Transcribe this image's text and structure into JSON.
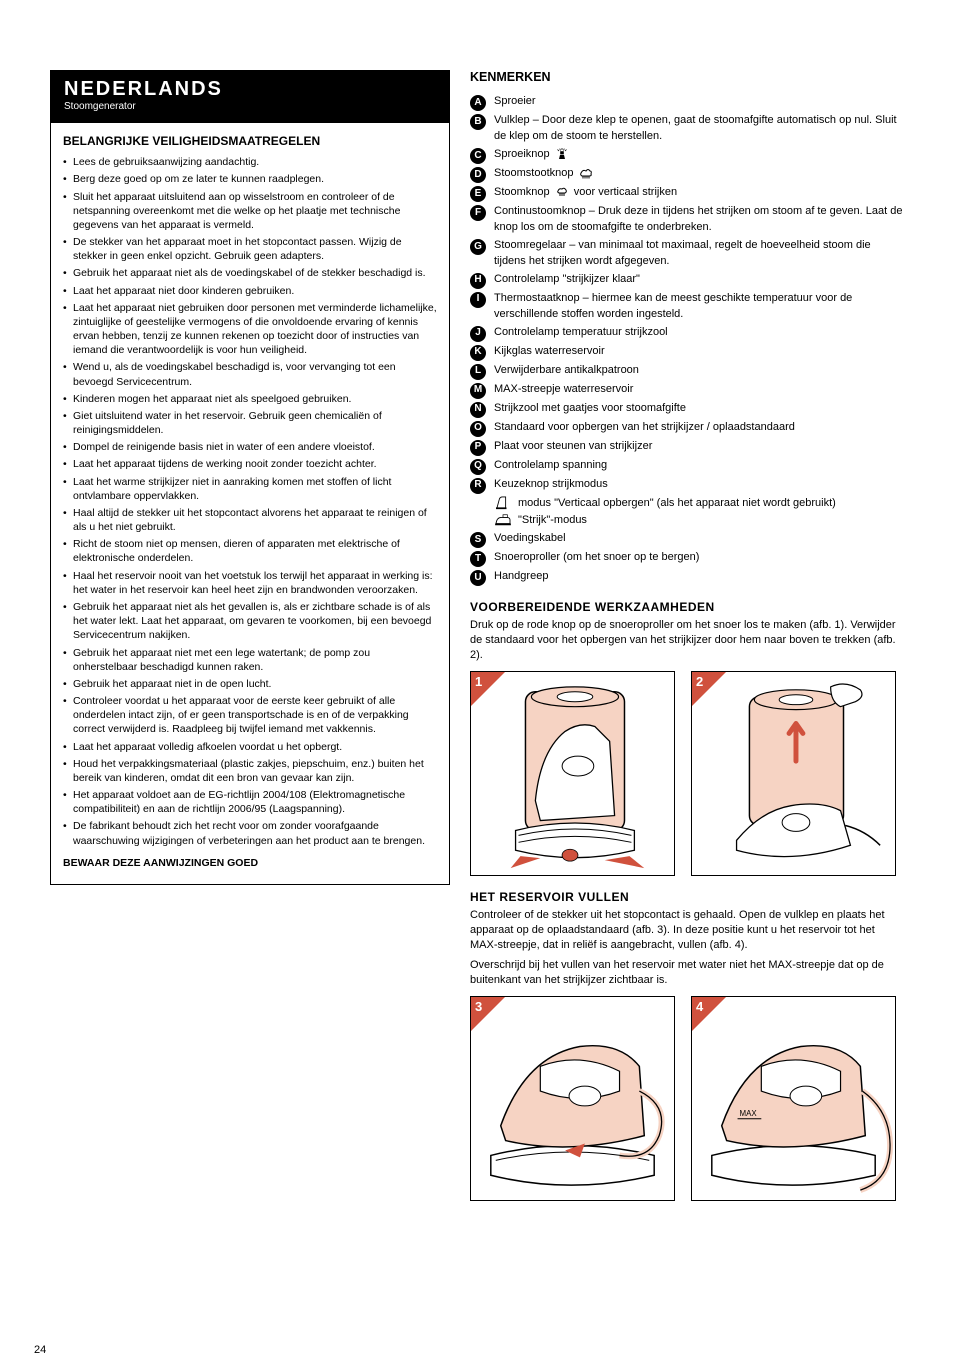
{
  "colors": {
    "accent": "#d0513d",
    "peach_fill": "#f6d3c3",
    "black": "#000000",
    "white": "#ffffff"
  },
  "page_number": "24",
  "header": {
    "title": "NEDERLANDS",
    "subtitle": "Stoomgenerator"
  },
  "safety": {
    "heading": "BELANGRIJKE VEILIGHEIDSMAATREGELEN",
    "items": [
      "Lees de gebruiksaanwijzing aandachtig.",
      "Berg deze goed op om ze later te kunnen raadplegen.",
      "Sluit het apparaat uitsluitend aan op wisselstroom en controleer of de netspanning overeenkomt met die welke op het plaatje met technische gegevens van het apparaat is vermeld.",
      "De stekker van het apparaat moet in het stopcontact passen. Wijzig de stekker in geen enkel opzicht. Gebruik geen adapters.",
      "Gebruik het apparaat niet als de voedingskabel of de stekker beschadigd is.",
      "Laat het apparaat niet door kinderen gebruiken.",
      "Laat het apparaat niet gebruiken door personen met verminderde lichamelijke, zintuiglijke of geestelijke vermogens of die onvoldoende ervaring of kennis ervan hebben, tenzij ze kunnen rekenen op toezicht door of instructies van iemand die verantwoordelijk is voor hun veiligheid.",
      "Wend u, als de voedingskabel beschadigd is, voor vervanging tot een bevoegd Servicecentrum.",
      "Kinderen mogen het apparaat niet als speelgoed gebruiken.",
      "Giet uitsluitend water in het reservoir. Gebruik geen chemicaliën of reinigingsmiddelen.",
      "Dompel de reinigende basis niet in water of een andere vloeistof.",
      "Laat het apparaat tijdens de werking nooit zonder toezicht achter.",
      "Laat het warme strijkijzer niet in aanraking komen met stoffen of licht ontvlambare oppervlakken.",
      "Haal altijd de stekker uit het stopcontact alvorens het apparaat te reinigen of als u het niet gebruikt.",
      "Richt de stoom niet op mensen, dieren of apparaten met elektrische of elektronische onderdelen.",
      "Haal het reservoir nooit van het voetstuk los terwijl het apparaat in werking is: het water in het reservoir kan heel heet zijn en brandwonden veroorzaken.",
      "Gebruik het apparaat niet als het gevallen is, als er zichtbare schade is of als het water lekt. Laat het apparaat, om gevaren te voorkomen, bij een bevoegd Servicecentrum nakijken.",
      "Gebruik het apparaat niet met een lege watertank; de pomp zou onherstelbaar beschadigd kunnen raken.",
      "Gebruik het apparaat niet in de open lucht.",
      "Controleer voordat u het apparaat voor de eerste keer gebruikt of alle onderdelen intact zijn, of er geen transportschade is en of de verpakking correct verwijderd is. Raadpleeg bij twijfel iemand met vakkennis.",
      "Laat het apparaat volledig afkoelen voordat u het opbergt.",
      "Houd het verpakkingsmateriaal (plastic zakjes, piepschuim, enz.) buiten het bereik van kinderen, omdat dit een bron van gevaar kan zijn.",
      "Het apparaat voldoet aan de EG-richtlijn 2004/108 (Elektromagnetische compatibiliteit) en aan de richtlijn 2006/95 (Laagspanning).",
      "De fabrikant behoudt zich het recht voor om zonder voorafgaande waarschuwing wijzigingen of verbeteringen aan het product aan te brengen."
    ],
    "footer": "BEWAAR DEZE AANWIJZINGEN GOED"
  },
  "features": {
    "heading": "KENMERKEN",
    "items": [
      {
        "key": "A",
        "text": "Sproeier"
      },
      {
        "key": "B",
        "text": "Vulklep – Door deze klep te openen, gaat de stoomafgifte automatisch op nul. Sluit de klep om de stoom te herstellen."
      },
      {
        "key": "C",
        "text": "Sproeiknop"
      },
      {
        "key": "D",
        "text": "Stoomstootknop"
      },
      {
        "key": "E",
        "text": "Stoomknop voor verticaal strijken"
      },
      {
        "key": "F",
        "text": "Continustoomknop – Druk deze in tijdens het strijken om stoom af te geven. Laat de knop los om de stoomafgifte te onderbreken."
      },
      {
        "key": "G",
        "text": "Stoomregelaar – van minimaal tot maximaal, regelt de hoeveelheid stoom die tijdens het strijken wordt afgegeven."
      },
      {
        "key": "H",
        "text": "Controlelamp \"strijkijzer klaar\""
      },
      {
        "key": "I",
        "text": "Thermostaatknop – hiermee kan de meest geschikte temperatuur voor de verschillende stoffen worden ingesteld."
      },
      {
        "key": "J",
        "text": "Controlelamp temperatuur strijkzool"
      },
      {
        "key": "K",
        "text": "Kijkglas waterreservoir"
      },
      {
        "key": "L",
        "text": "Verwijderbare antikalkpatroon"
      },
      {
        "key": "M",
        "text": "MAX-streepje waterreservoir"
      },
      {
        "key": "N",
        "text": "Strijkzool met gaatjes voor stoomafgifte"
      },
      {
        "key": "O",
        "text": "Standaard voor opbergen van het strijkijzer / oplaadstandaard"
      },
      {
        "key": "P",
        "text": "Plaat voor steunen van strijkijzer"
      },
      {
        "key": "Q",
        "text": "Controlelamp spanning"
      },
      {
        "key": "R",
        "text": "Keuzeknop strijkmodus"
      }
    ],
    "mode_lines": [
      "modus \"Verticaal opbergen\" (als het apparaat niet wordt gebruikt)",
      "\"Strijk\"-modus"
    ],
    "items2": [
      {
        "key": "S",
        "text": "Voedingskabel"
      },
      {
        "key": "T",
        "text": "Snoeroproller (om het snoer op te bergen)"
      },
      {
        "key": "U",
        "text": "Handgreep"
      }
    ]
  },
  "prep": {
    "heading": "VOORBEREIDENDE WERKZAAMHEDEN",
    "body": "Druk op de rode knop op de snoeroproller om het snoer los te maken (afb. 1). Verwijder de standaard voor het opbergen van het strijkijzer door hem naar boven te trekken (afb. 2)."
  },
  "fill": {
    "heading": "HET RESERVOIR VULLEN",
    "body1": "Controleer of de stekker uit het stopcontact is gehaald. Open de vulklep en plaats het apparaat op de oplaadstandaard (afb. 3). In deze positie kunt u het reservoir tot het MAX-streepje, dat in reliëf is aangebracht, vullen (afb. 4).",
    "body2": "Overschrijd bij het vullen van het reservoir met water niet het MAX-streepje dat op de buitenkant van het strijkijzer zichtbaar is."
  },
  "figures": {
    "row1": [
      {
        "num": "1",
        "alt": "release-cord"
      },
      {
        "num": "2",
        "alt": "lift-stand"
      }
    ],
    "row2": [
      {
        "num": "3",
        "alt": "place-on-base"
      },
      {
        "num": "4",
        "alt": "fill-max"
      }
    ]
  }
}
